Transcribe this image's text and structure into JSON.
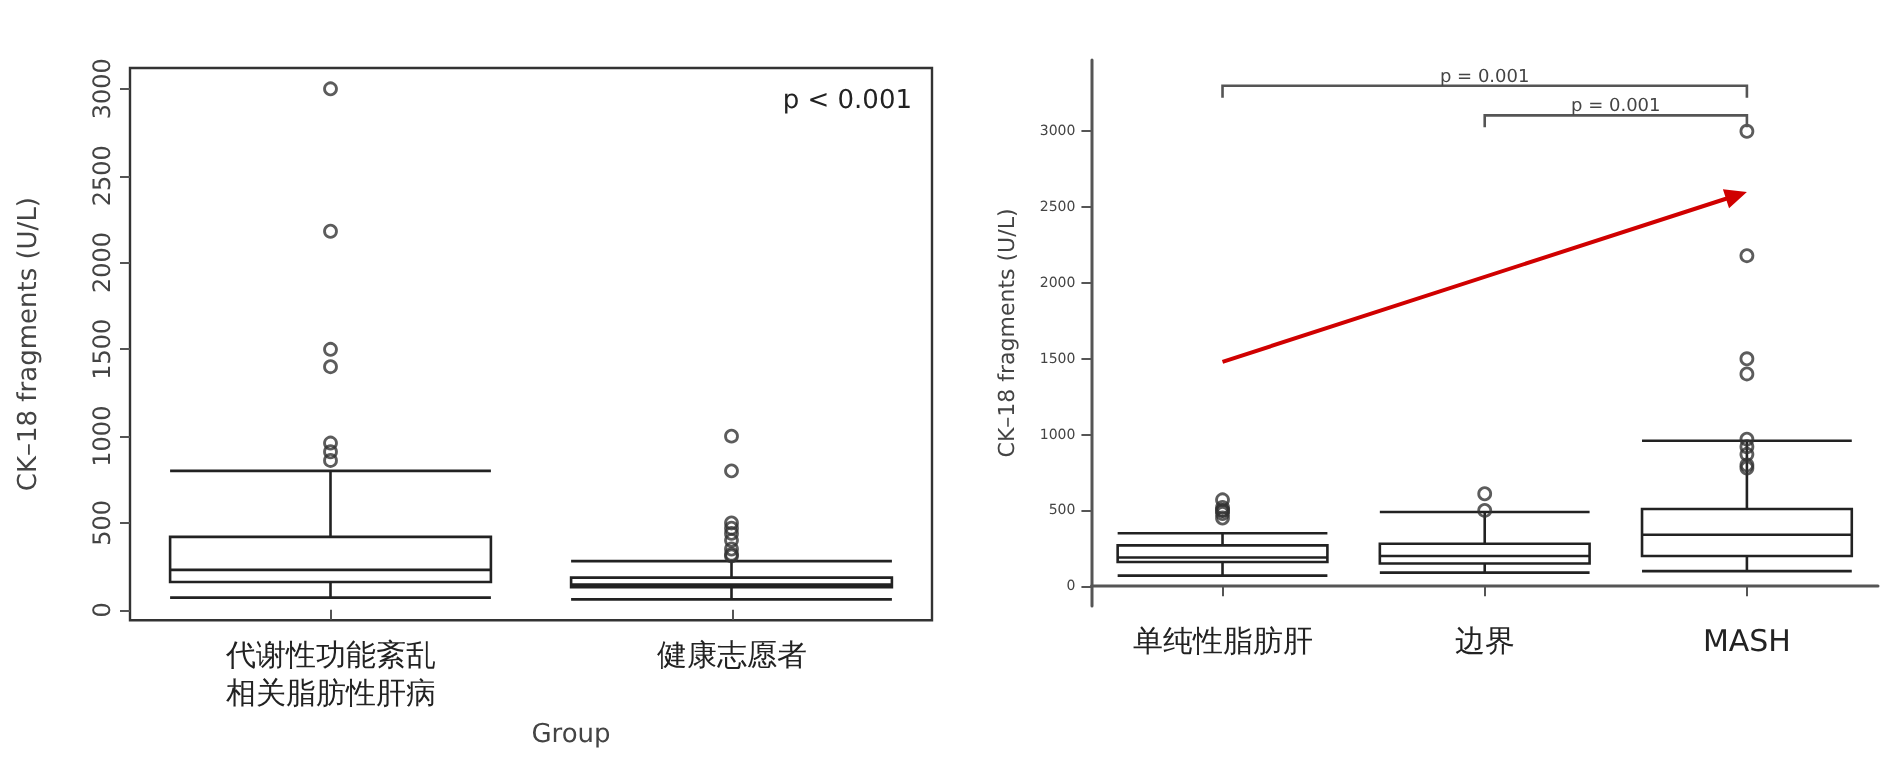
{
  "chart_data": [
    {
      "type": "box",
      "ylabel": "CK–18 fragments (U/L)",
      "xlabel": "Group",
      "categories": [
        "代谢性功能紊乱相关脂肪性肝病",
        "健康志愿者"
      ],
      "boxes": [
        {
          "low": 70,
          "q1": 160,
          "median": 230,
          "q3": 420,
          "high": 800,
          "outliers": [
            3000,
            2180,
            1500,
            1400,
            960,
            910,
            860
          ]
        },
        {
          "low": 60,
          "q1": 130,
          "median": 145,
          "q3": 185,
          "high": 280,
          "outliers": [
            1000,
            800,
            500,
            470,
            440,
            400,
            350,
            320,
            310
          ]
        }
      ],
      "ylim": [
        -60,
        3120
      ],
      "yticks": [
        0,
        500,
        1000,
        1500,
        2000,
        2500,
        3000
      ],
      "annotations": [
        "p < 0.001"
      ],
      "grid": false
    },
    {
      "type": "box",
      "ylabel": "CK–18 fragments (U/L)",
      "categories": [
        "单纯性脂肪肝",
        "边界",
        "MASH"
      ],
      "boxes": [
        {
          "low": 70,
          "q1": 160,
          "median": 190,
          "q3": 270,
          "high": 350,
          "outliers": [
            570,
            520,
            500,
            500,
            480,
            450
          ]
        },
        {
          "low": 90,
          "q1": 150,
          "median": 200,
          "q3": 280,
          "high": 490,
          "outliers": [
            610,
            500
          ]
        },
        {
          "low": 100,
          "q1": 200,
          "median": 340,
          "q3": 510,
          "high": 960,
          "outliers": [
            3000,
            2180,
            1500,
            1400,
            970,
            920,
            870,
            800,
            780
          ]
        }
      ],
      "ylim": [
        -130,
        3470
      ],
      "yticks": [
        0,
        500,
        1000,
        1500,
        2000,
        2500,
        3000
      ],
      "annotations": [
        "p = 0.001",
        "p = 0.001"
      ],
      "grid": false
    }
  ]
}
